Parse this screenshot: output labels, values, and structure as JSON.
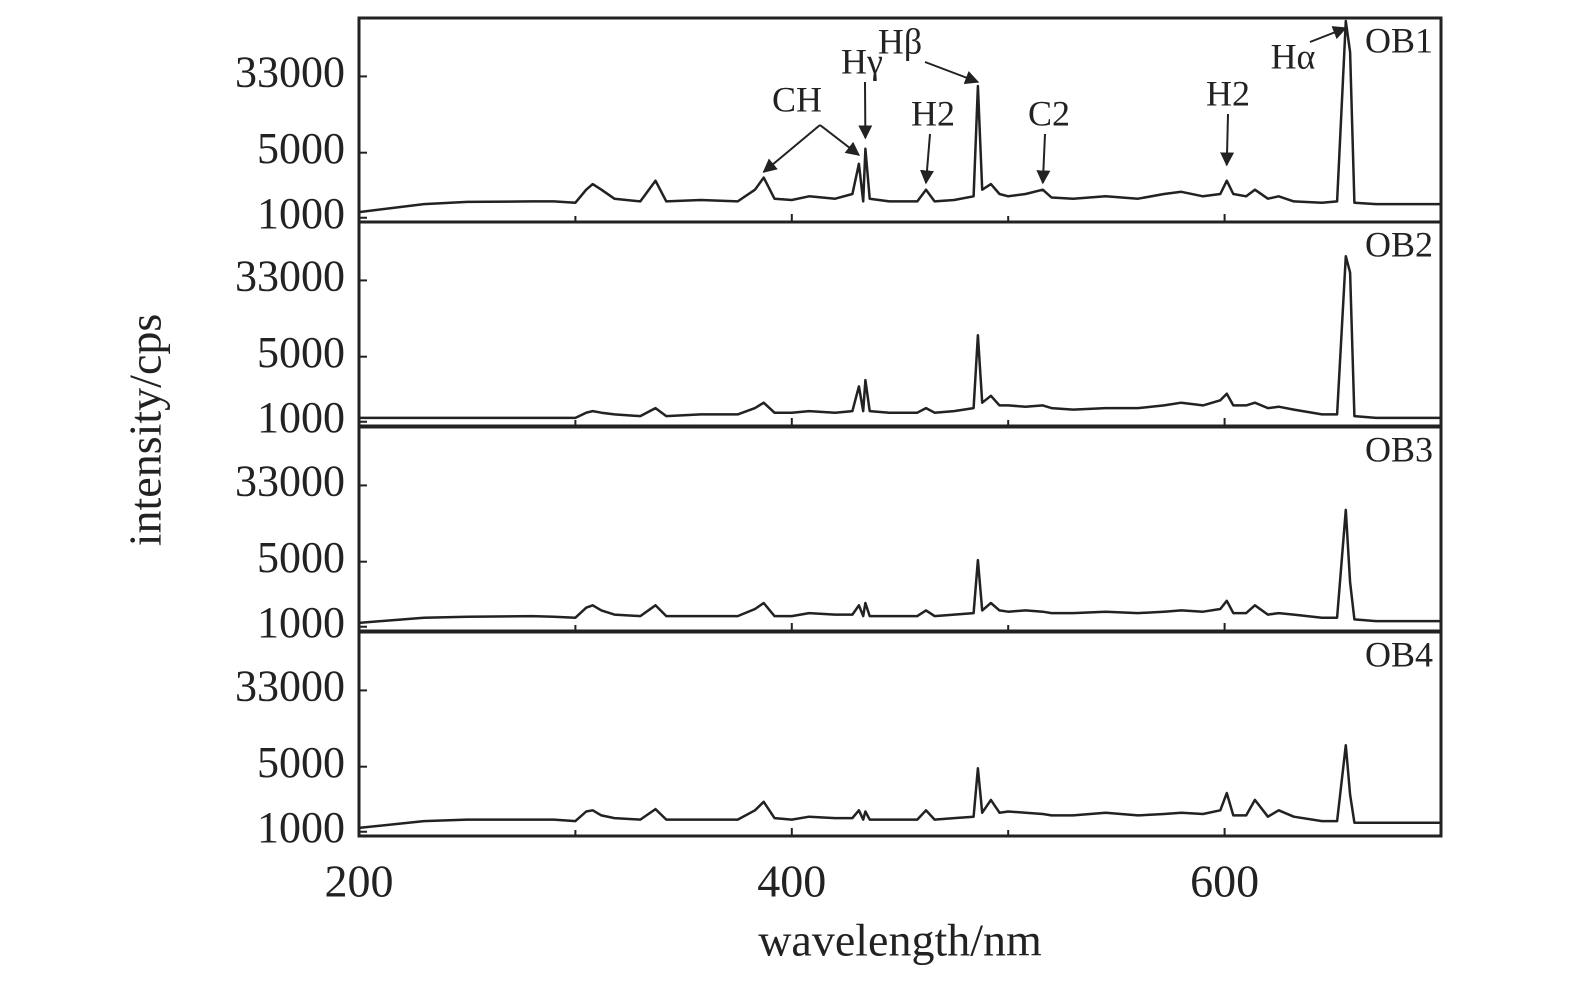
{
  "chart_data": [
    {
      "type": "line",
      "yscale": "log",
      "ylabel": "intensity/cps",
      "xlim": [
        200,
        700
      ],
      "xticks": [
        200,
        400,
        600
      ],
      "xminor": [
        300,
        500
      ],
      "ylim": [
        900,
        140000
      ],
      "yticks": [
        1000,
        5000,
        33000
      ],
      "x": [
        200,
        230,
        250,
        280,
        290,
        300,
        305,
        308,
        312,
        318,
        330,
        337,
        342,
        358,
        375,
        383,
        387,
        392,
        400,
        408,
        420,
        428,
        431,
        433,
        434,
        436,
        445,
        458,
        462,
        466,
        475,
        484,
        486,
        488,
        492,
        496,
        500,
        508,
        516,
        520,
        530,
        545,
        560,
        572,
        580,
        590,
        598,
        601,
        604,
        610,
        614,
        620,
        625,
        632,
        645,
        652,
        656,
        658,
        660,
        670,
        700
      ],
      "series": [
        {
          "name": "OB1",
          "color": "#222222",
          "values": [
            1150,
            1400,
            1480,
            1500,
            1500,
            1450,
            2000,
            2300,
            2000,
            1600,
            1500,
            2500,
            1500,
            1550,
            1500,
            2000,
            2700,
            1600,
            1550,
            1700,
            1600,
            1800,
            3800,
            1500,
            5500,
            1600,
            1500,
            1500,
            2000,
            1500,
            1550,
            1700,
            26000,
            2000,
            2300,
            1800,
            1700,
            1800,
            2000,
            1650,
            1600,
            1700,
            1600,
            1800,
            1900,
            1700,
            1800,
            2500,
            1800,
            1700,
            2000,
            1600,
            1700,
            1500,
            1450,
            1500,
            130000,
            60000,
            1450,
            1400,
            1400
          ]
        }
      ],
      "annotations": [
        {
          "text": "CH",
          "x": [
            387,
            431
          ]
        },
        {
          "text": "Hγ",
          "x": [
            434
          ]
        },
        {
          "text": "Hβ",
          "x": [
            486
          ]
        },
        {
          "text": "H2",
          "x": [
            462
          ]
        },
        {
          "text": "C2",
          "x": [
            516
          ]
        },
        {
          "text": "H2",
          "x": [
            601
          ]
        },
        {
          "text": "Hα",
          "x": [
            656
          ]
        }
      ]
    },
    {
      "type": "line",
      "yscale": "log",
      "xlim": [
        200,
        700
      ],
      "xticks": [
        200,
        400,
        600
      ],
      "xminor": [
        300,
        500
      ],
      "ylim": [
        900,
        140000
      ],
      "yticks": [
        1000,
        5000,
        33000
      ],
      "x": [
        200,
        230,
        250,
        280,
        290,
        300,
        305,
        308,
        312,
        318,
        330,
        337,
        342,
        358,
        375,
        383,
        387,
        392,
        400,
        408,
        420,
        428,
        431,
        433,
        434,
        436,
        445,
        458,
        462,
        466,
        475,
        484,
        486,
        488,
        492,
        496,
        500,
        508,
        516,
        520,
        530,
        545,
        560,
        572,
        580,
        590,
        598,
        601,
        604,
        610,
        614,
        620,
        625,
        632,
        645,
        652,
        656,
        658,
        660,
        670,
        700
      ],
      "series": [
        {
          "name": "OB2",
          "color": "#222222",
          "values": [
            1100,
            1100,
            1100,
            1100,
            1100,
            1100,
            1250,
            1300,
            1250,
            1200,
            1150,
            1400,
            1150,
            1200,
            1200,
            1400,
            1600,
            1250,
            1250,
            1300,
            1250,
            1300,
            2400,
            1300,
            2800,
            1300,
            1250,
            1250,
            1400,
            1250,
            1300,
            1400,
            8500,
            1600,
            1900,
            1500,
            1500,
            1450,
            1500,
            1400,
            1350,
            1400,
            1400,
            1500,
            1600,
            1500,
            1700,
            2000,
            1500,
            1500,
            1600,
            1400,
            1450,
            1350,
            1200,
            1200,
            60000,
            40000,
            1150,
            1100,
            1100
          ]
        }
      ]
    },
    {
      "type": "line",
      "yscale": "log",
      "xlim": [
        200,
        700
      ],
      "xticks": [
        200,
        400,
        600
      ],
      "xminor": [
        300,
        500
      ],
      "ylim": [
        900,
        140000
      ],
      "yticks": [
        1000,
        5000,
        33000
      ],
      "x": [
        200,
        230,
        250,
        280,
        290,
        300,
        305,
        308,
        312,
        318,
        330,
        337,
        342,
        358,
        375,
        383,
        387,
        392,
        400,
        408,
        420,
        428,
        431,
        433,
        434,
        436,
        445,
        458,
        462,
        466,
        475,
        484,
        486,
        488,
        492,
        496,
        500,
        508,
        516,
        520,
        530,
        545,
        560,
        572,
        580,
        590,
        598,
        601,
        604,
        610,
        614,
        620,
        625,
        632,
        645,
        652,
        656,
        658,
        660,
        670,
        700
      ],
      "series": [
        {
          "name": "OB3",
          "color": "#222222",
          "values": [
            1100,
            1250,
            1280,
            1300,
            1280,
            1250,
            1600,
            1700,
            1500,
            1350,
            1300,
            1700,
            1300,
            1300,
            1300,
            1550,
            1800,
            1300,
            1300,
            1400,
            1350,
            1350,
            1700,
            1300,
            1800,
            1300,
            1300,
            1300,
            1500,
            1300,
            1350,
            1400,
            5200,
            1500,
            1800,
            1500,
            1450,
            1500,
            1450,
            1400,
            1400,
            1450,
            1400,
            1450,
            1500,
            1450,
            1550,
            1900,
            1400,
            1400,
            1700,
            1350,
            1400,
            1350,
            1250,
            1250,
            18000,
            3000,
            1200,
            1150,
            1150
          ]
        }
      ]
    },
    {
      "type": "line",
      "yscale": "log",
      "xlabel": "wavelength/nm",
      "xlim": [
        200,
        700
      ],
      "xticks": [
        200,
        400,
        600
      ],
      "xminor": [
        300,
        500
      ],
      "ylim": [
        900,
        140000
      ],
      "yticks": [
        1000,
        5000,
        33000
      ],
      "x": [
        200,
        230,
        250,
        280,
        290,
        300,
        305,
        308,
        312,
        318,
        330,
        337,
        342,
        358,
        375,
        383,
        387,
        392,
        400,
        408,
        420,
        428,
        431,
        433,
        434,
        436,
        445,
        458,
        462,
        466,
        475,
        484,
        486,
        488,
        492,
        496,
        500,
        508,
        516,
        520,
        530,
        545,
        560,
        572,
        580,
        590,
        598,
        601,
        604,
        610,
        614,
        620,
        625,
        632,
        645,
        652,
        656,
        658,
        660,
        670,
        700
      ],
      "series": [
        {
          "name": "OB4",
          "color": "#222222",
          "values": [
            1100,
            1300,
            1350,
            1350,
            1350,
            1300,
            1650,
            1700,
            1500,
            1400,
            1350,
            1750,
            1350,
            1350,
            1350,
            1700,
            2100,
            1400,
            1350,
            1450,
            1400,
            1400,
            1700,
            1350,
            1650,
            1350,
            1350,
            1350,
            1700,
            1350,
            1400,
            1450,
            4800,
            1600,
            2200,
            1600,
            1650,
            1600,
            1550,
            1500,
            1500,
            1600,
            1500,
            1550,
            1600,
            1550,
            1700,
            2600,
            1500,
            1500,
            2200,
            1450,
            1700,
            1450,
            1300,
            1300,
            8500,
            2500,
            1250,
            1250,
            1250
          ]
        }
      ]
    }
  ]
}
